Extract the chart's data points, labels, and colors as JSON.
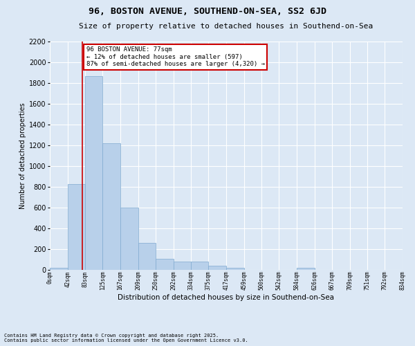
{
  "title": "96, BOSTON AVENUE, SOUTHEND-ON-SEA, SS2 6JD",
  "subtitle": "Size of property relative to detached houses in Southend-on-Sea",
  "xlabel": "Distribution of detached houses by size in Southend-on-Sea",
  "ylabel": "Number of detached properties",
  "footnote1": "Contains HM Land Registry data © Crown copyright and database right 2025.",
  "footnote2": "Contains public sector information licensed under the Open Government Licence v3.0.",
  "annotation_line1": "96 BOSTON AVENUE: 77sqm",
  "annotation_line2": "← 12% of detached houses are smaller (597)",
  "annotation_line3": "87% of semi-detached houses are larger (4,320) →",
  "property_size": 77,
  "bar_edges": [
    0,
    42,
    83,
    125,
    167,
    209,
    250,
    292,
    334,
    375,
    417,
    459,
    500,
    542,
    584,
    626,
    667,
    709,
    751,
    792,
    834
  ],
  "bar_heights": [
    20,
    830,
    1870,
    1220,
    600,
    260,
    110,
    80,
    80,
    40,
    20,
    0,
    0,
    0,
    20,
    0,
    0,
    0,
    0,
    0
  ],
  "bar_color": "#b8d0ea",
  "bar_edgecolor": "#80aad0",
  "vline_color": "#cc0000",
  "vline_x": 77,
  "annotation_box_edgecolor": "#cc0000",
  "annotation_box_facecolor": "#ffffff",
  "background_color": "#dce8f5",
  "plot_background": "#dce8f5",
  "grid_color": "#ffffff",
  "ylim": [
    0,
    2200
  ],
  "yticks": [
    0,
    200,
    400,
    600,
    800,
    1000,
    1200,
    1400,
    1600,
    1800,
    2000,
    2200
  ],
  "title_fontsize": 9.5,
  "subtitle_fontsize": 8,
  "xlabel_fontsize": 7.5,
  "ylabel_fontsize": 7,
  "xtick_fontsize": 5.5,
  "ytick_fontsize": 7,
  "annot_fontsize": 6.5,
  "footnote_fontsize": 5
}
